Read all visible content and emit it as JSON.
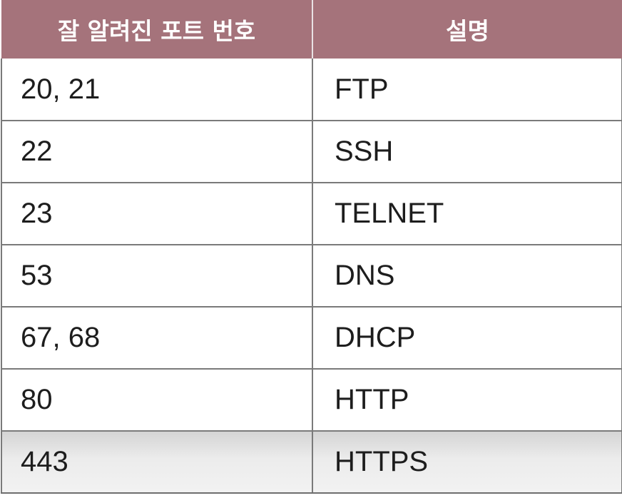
{
  "table": {
    "headers": [
      "잘 알려진 포트 번호",
      "설명"
    ],
    "rows": [
      {
        "port": "20, 21",
        "service": "FTP"
      },
      {
        "port": "22",
        "service": "SSH"
      },
      {
        "port": "23",
        "service": "TELNET"
      },
      {
        "port": "53",
        "service": "DNS"
      },
      {
        "port": "67, 68",
        "service": "DHCP"
      },
      {
        "port": "80",
        "service": "HTTP"
      },
      {
        "port": "443",
        "service": "HTTPS"
      }
    ]
  },
  "colors": {
    "header_background": "#a5737b",
    "header_text": "#ffffff",
    "grid_line": "#7a7a7a",
    "cell_text": "#1d1d1d"
  }
}
